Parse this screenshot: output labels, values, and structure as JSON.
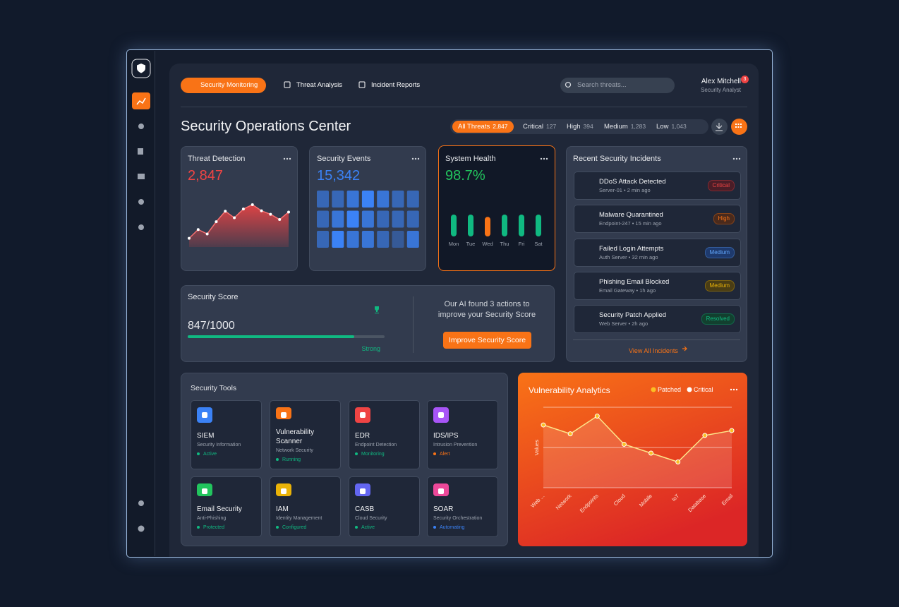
{
  "nav": {
    "tabs": [
      "Security Monitoring",
      "Threat Analysis",
      "Incident Reports"
    ],
    "search_placeholder": "Search threats...",
    "user": {
      "name": "Alex Mitchell",
      "role": "Security Analyst",
      "notifications": "3"
    }
  },
  "header": {
    "title": "Security Operations Center",
    "filters": [
      {
        "label": "All Threats",
        "count": "2,847"
      },
      {
        "label": "Critical",
        "count": "127"
      },
      {
        "label": "High",
        "count": "394"
      },
      {
        "label": "Medium",
        "count": "1,283"
      },
      {
        "label": "Low",
        "count": "1,043"
      }
    ]
  },
  "cards": {
    "threat_detection": {
      "title": "Threat Detection",
      "value": "2,847",
      "trend": [
        20,
        40,
        30,
        58,
        82,
        67,
        87,
        97,
        83,
        75,
        63,
        80
      ]
    },
    "security_events": {
      "title": "Security Events",
      "value": "15,342",
      "heatmap": [
        [
          2,
          2,
          3,
          4,
          3,
          2,
          2
        ],
        [
          2,
          3,
          4,
          3,
          2,
          2,
          2
        ],
        [
          2,
          4,
          3,
          3,
          2,
          1,
          3
        ]
      ]
    },
    "system_health": {
      "title": "System Health",
      "value": "98.7%",
      "days": [
        "Mon",
        "Tue",
        "Wed",
        "Thu",
        "Fri",
        "Sat"
      ],
      "values": [
        95,
        95,
        85,
        95,
        95,
        95
      ],
      "colors": [
        "#10b981",
        "#10b981",
        "#f97316",
        "#10b981",
        "#10b981",
        "#10b981"
      ]
    },
    "security_score": {
      "title": "Security Score",
      "score": {
        "value": 847,
        "max": 1000,
        "label": "847/1000"
      },
      "rating": "Strong",
      "ai_message": "Our AI found 3 actions to improve your Security Score",
      "button": "Improve Security Score"
    }
  },
  "incidents": {
    "title": "Recent Security Incidents",
    "items": [
      {
        "title": "DDoS Attack Detected",
        "meta": "Server-01 • 2 min ago",
        "severity": "Critical"
      },
      {
        "title": "Malware Quarantined",
        "meta": "Endpoint-247 • 15 min ago",
        "severity": "High"
      },
      {
        "title": "Failed Login Attempts",
        "meta": "Auth Server • 32 min ago",
        "severity": "Medium"
      },
      {
        "title": "Phishing Email Blocked",
        "meta": "Email Gateway • 1h ago",
        "severity": "Medium"
      },
      {
        "title": "Security Patch Applied",
        "meta": "Web Server • 2h ago",
        "severity": "Resolved"
      }
    ],
    "link": "View All Incidents"
  },
  "tools": {
    "title": "Security Tools",
    "items": [
      {
        "name": "SIEM",
        "desc": "Security Information",
        "status": "Active",
        "color": "#3b82f6"
      },
      {
        "name": "Vulnerability Scanner",
        "desc": "Network Security",
        "status": "Running",
        "color": "#f97316"
      },
      {
        "name": "EDR",
        "desc": "Endpoint Detection",
        "status": "Monitoring",
        "color": "#ef4444"
      },
      {
        "name": "IDS/IPS",
        "desc": "Intrusion Prevention",
        "status": "Alert",
        "color": "#a855f7"
      },
      {
        "name": "Email Security",
        "desc": "Anti-Phishing",
        "status": "Protected",
        "color": "#22c55e"
      },
      {
        "name": "IAM",
        "desc": "Identity Management",
        "status": "Configured",
        "color": "#eab308"
      },
      {
        "name": "CASB",
        "desc": "Cloud Security",
        "status": "Active",
        "color": "#6366f1"
      },
      {
        "name": "SOAR",
        "desc": "Security Orchestration",
        "status": "Automating",
        "color": "#ec4899"
      }
    ]
  },
  "chart_data": {
    "type": "line",
    "title": "Vulnerability Analytics",
    "legend": [
      {
        "name": "Patched",
        "color": "#fbbf24"
      },
      {
        "name": "Critical",
        "color": "#ffffff"
      }
    ],
    "y_label": "Values",
    "categories": [
      "Web ...",
      "Network",
      "Endpoints",
      "Cloud",
      "Mobile",
      "IoT",
      "Database",
      "Email"
    ],
    "values": [
      78,
      67,
      89,
      54,
      43,
      32,
      65,
      71
    ],
    "color": "#fde68a",
    "ylim": [
      0,
      100
    ],
    "yticks": [
      0,
      50,
      100
    ],
    "grid": true
  }
}
